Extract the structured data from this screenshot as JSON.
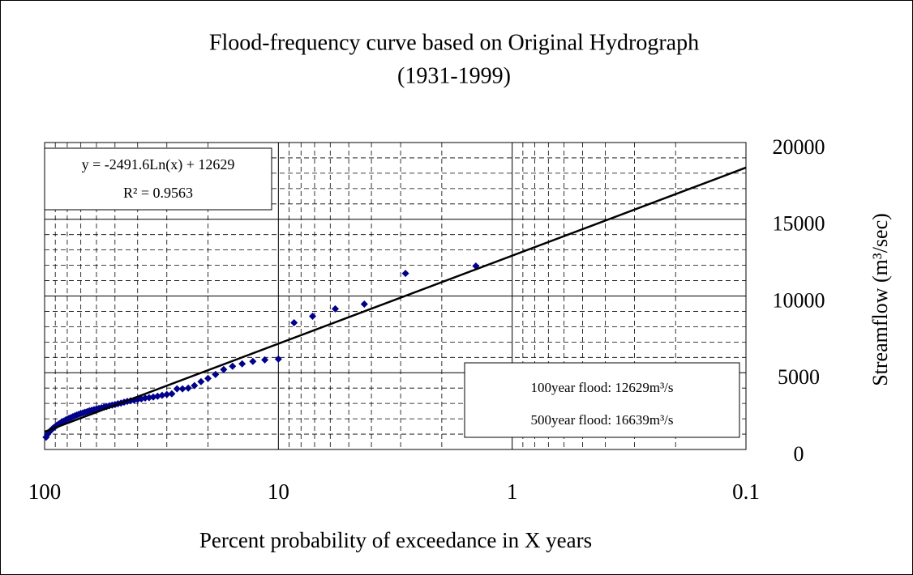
{
  "chart_data": {
    "type": "scatter",
    "title": "Flood-frequency curve based on Original Hydrograph",
    "subtitle": "(1931-1999)",
    "x_label": "Percent probability of exceedance in X years",
    "y_label": "Streamflow (m³/sec)",
    "x_log": true,
    "grid": true,
    "minor_grid": true,
    "xlim": [
      100,
      0.1
    ],
    "xticks": [
      100,
      10,
      1,
      0.1
    ],
    "ylim": [
      0,
      20000
    ],
    "yticks": [
      0,
      5000,
      10000,
      15000,
      20000
    ],
    "series": [
      {
        "type": "scatter",
        "color": "#00008b",
        "x": [
          1.43,
          2.86,
          4.29,
          5.71,
          7.14,
          8.57,
          10,
          11.43,
          12.86,
          14.29,
          15.71,
          17.14,
          18.57,
          20,
          21.43,
          22.86,
          24.29,
          25.71,
          27.14,
          28.57,
          30,
          31.43,
          32.86,
          34.29,
          35.71,
          37.14,
          38.57,
          40,
          41.43,
          42.86,
          44.29,
          45.71,
          47.14,
          48.57,
          50,
          51.43,
          52.86,
          54.29,
          55.71,
          57.14,
          58.57,
          60,
          61.43,
          62.86,
          64.29,
          65.71,
          67.14,
          68.57,
          70,
          71.43,
          72.86,
          74.29,
          75.71,
          77.14,
          78.57,
          80,
          81.43,
          82.86,
          84.29,
          85.71,
          87.14,
          88.57,
          90,
          91.43,
          92.86,
          94.29,
          95.71,
          97.14,
          98.57
        ],
        "values": [
          11950,
          11470,
          9470,
          9160,
          8680,
          8260,
          5890,
          5840,
          5740,
          5580,
          5420,
          5210,
          4890,
          4630,
          4420,
          4160,
          4000,
          3950,
          3950,
          3630,
          3580,
          3530,
          3470,
          3420,
          3380,
          3350,
          3300,
          3260,
          3210,
          3170,
          3130,
          3080,
          3020,
          2980,
          2930,
          2890,
          2850,
          2800,
          2760,
          2720,
          2680,
          2640,
          2600,
          2560,
          2520,
          2470,
          2430,
          2380,
          2340,
          2290,
          2240,
          2190,
          2140,
          2080,
          2030,
          1970,
          1910,
          1850,
          1790,
          1720,
          1650,
          1580,
          1500,
          1420,
          1330,
          1230,
          1120,
          990,
          800
        ]
      },
      {
        "type": "line",
        "color": "#000000",
        "x": [
          100,
          0.1
        ],
        "values": [
          1155,
          18366
        ]
      }
    ],
    "annotations": [
      {
        "lines": [
          "y = -2491.6Ln(x) + 12629",
          "R² = 0.9563"
        ]
      },
      {
        "lines": [
          "100year flood: 12629m³/s",
          "500year flood: 16639m³/s"
        ]
      }
    ]
  }
}
